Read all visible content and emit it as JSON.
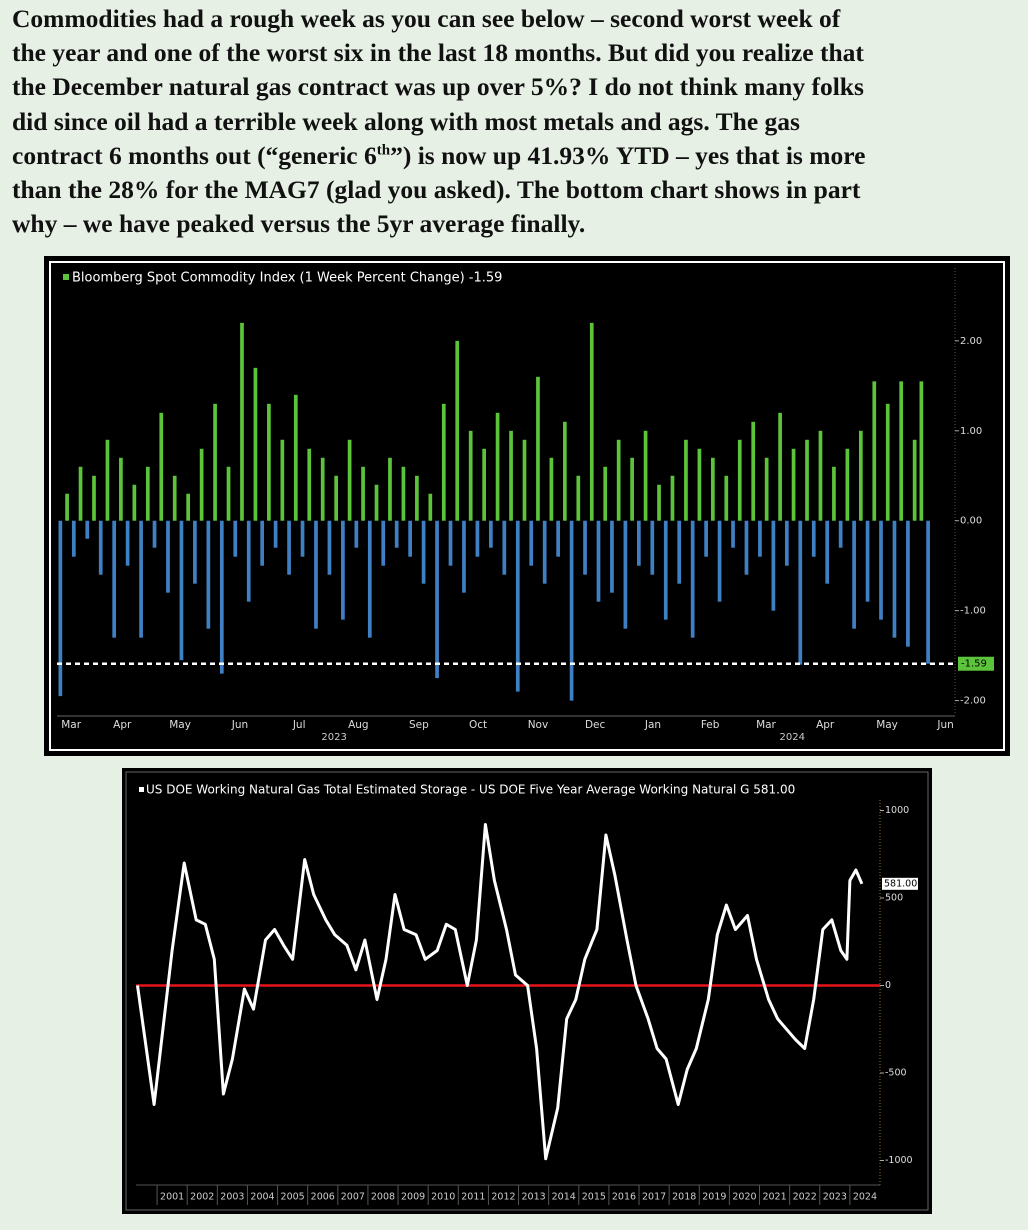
{
  "paragraph": {
    "lines": [
      "Commodities had a rough week as you can see below – second worst week of",
      "the year and one of the worst six in the last 18 months. But did you realize that",
      "the December natural gas contract was up over 5%? I do not think many folks",
      "did since oil had a terrible week along with most metals and ags. The gas",
      [
        "contract 6 months out (“generic 6",
        "th",
        "”)  is now up 41.93% YTD – yes that is more"
      ],
      "than the 28% for the MAG7 (glad you asked). The bottom chart shows in part",
      "why – we have peaked versus the 5yr average finally."
    ]
  },
  "chart_data": [
    {
      "type": "bar",
      "title": "Bloomberg Spot Commodity Index (1 Week Percent Change) -1.59",
      "positive_color": "#5cc43a",
      "negative_color": "#3f80c4",
      "values": [
        -1.95,
        0.3,
        -0.4,
        0.6,
        -0.2,
        0.5,
        -0.6,
        0.9,
        -1.3,
        0.7,
        -0.5,
        0.4,
        -1.3,
        0.6,
        -0.3,
        1.2,
        -0.8,
        0.5,
        -1.55,
        0.3,
        -0.7,
        0.8,
        -1.2,
        1.3,
        -1.7,
        0.6,
        -0.4,
        2.2,
        -0.9,
        1.7,
        -0.5,
        1.3,
        -0.3,
        0.9,
        -0.6,
        1.4,
        -0.4,
        0.8,
        -1.2,
        0.7,
        -0.6,
        0.5,
        -1.1,
        0.9,
        -0.3,
        0.6,
        -1.3,
        0.4,
        -0.5,
        0.7,
        -0.3,
        0.6,
        -0.4,
        0.5,
        -0.7,
        0.3,
        -1.75,
        1.3,
        -0.5,
        2.0,
        -0.8,
        1.0,
        -0.4,
        0.8,
        -0.3,
        1.2,
        -0.6,
        1.0,
        -1.9,
        0.9,
        -0.5,
        1.6,
        -0.7,
        0.7,
        -0.4,
        1.1,
        -2.0,
        0.5,
        -0.6,
        2.2,
        -0.9,
        0.6,
        -0.8,
        0.9,
        -1.2,
        0.7,
        -0.5,
        1.0,
        -0.6,
        0.4,
        -1.1,
        0.5,
        -0.7,
        0.9,
        -1.3,
        0.8,
        -0.4,
        0.7,
        -0.9,
        0.5,
        -0.3,
        0.9,
        -0.6,
        1.1,
        -0.4,
        0.7,
        -1.0,
        1.2,
        -0.5,
        0.8,
        -1.6,
        0.9,
        -0.4,
        1.0,
        -0.7,
        0.6,
        -0.3,
        0.8,
        -1.2,
        1.0,
        -0.9,
        1.55,
        -1.1,
        1.3,
        -1.3,
        1.55,
        -1.4,
        0.9,
        1.55,
        -1.59
      ],
      "xlim": [
        -0.5,
        133
      ],
      "xticks": [
        {
          "value": 1.6,
          "label": "Mar"
        },
        {
          "value": 9.2,
          "label": "Apr"
        },
        {
          "value": 17.8,
          "label": "May"
        },
        {
          "value": 26.7,
          "label": "Jun"
        },
        {
          "value": 35.5,
          "label": "Jul"
        },
        {
          "value": 44.3,
          "label": "Aug"
        },
        {
          "value": 53.3,
          "label": "Sep"
        },
        {
          "value": 62.1,
          "label": "Oct"
        },
        {
          "value": 71,
          "label": "Nov"
        },
        {
          "value": 79.5,
          "label": "Dec"
        },
        {
          "value": 88.1,
          "label": "Jan"
        },
        {
          "value": 96.6,
          "label": "Feb"
        },
        {
          "value": 104.9,
          "label": "Mar"
        },
        {
          "value": 113.7,
          "label": "Apr"
        },
        {
          "value": 122.9,
          "label": "May"
        },
        {
          "value": 131.6,
          "label": "Jun"
        }
      ],
      "year_labels": [
        {
          "value": 40.7,
          "label": "2023"
        },
        {
          "value": 108.8,
          "label": "2024"
        }
      ],
      "ylim": [
        -2.16,
        2.81
      ],
      "yticks": [
        {
          "value": 2,
          "label": "2.00"
        },
        {
          "value": 1,
          "label": "1.00"
        },
        {
          "value": 0,
          "label": "0.00"
        },
        {
          "value": -1,
          "label": "-1.00"
        },
        {
          "value": -2,
          "label": "-2.00"
        }
      ],
      "current_value": -1.59,
      "current_label": "-1.59"
    },
    {
      "type": "line",
      "title": "US DOE Working Natural Gas Total Estimated Storage - US DOE Five Year Average Working Natural G 581.00",
      "color": "#ffffff",
      "x": [
        2000.35,
        2000.9,
        2001.5,
        2001.9,
        2002.3,
        2002.6,
        2002.9,
        2003.2,
        2003.5,
        2003.9,
        2004.2,
        2004.6,
        2004.9,
        2005.2,
        2005.5,
        2005.9,
        2006.2,
        2006.6,
        2006.9,
        2007.3,
        2007.6,
        2007.9,
        2008.3,
        2008.6,
        2008.9,
        2009.2,
        2009.6,
        2009.9,
        2010.3,
        2010.6,
        2010.9,
        2011.3,
        2011.6,
        2011.9,
        2012.2,
        2012.6,
        2012.9,
        2013.3,
        2013.6,
        2013.9,
        2014.3,
        2014.6,
        2014.9,
        2015.2,
        2015.6,
        2015.9,
        2016.2,
        2016.6,
        2016.9,
        2017.3,
        2017.6,
        2017.9,
        2018.3,
        2018.6,
        2018.9,
        2019.3,
        2019.6,
        2019.9,
        2020.2,
        2020.6,
        2020.9,
        2021.3,
        2021.6,
        2021.9,
        2022.2,
        2022.5,
        2022.8,
        2023.1,
        2023.4,
        2023.7,
        2023.9,
        2024.0,
        2024.2,
        2024.4
      ],
      "values": [
        0,
        -680,
        200,
        700,
        375,
        350,
        150,
        -620,
        -420,
        -20,
        -135,
        260,
        320,
        230,
        150,
        720,
        520,
        375,
        290,
        230,
        90,
        260,
        -80,
        150,
        520,
        320,
        290,
        150,
        200,
        350,
        320,
        0,
        260,
        920,
        600,
        320,
        60,
        0,
        -360,
        -990,
        -700,
        -190,
        -80,
        150,
        320,
        860,
        630,
        260,
        0,
        -190,
        -360,
        -420,
        -680,
        -480,
        -360,
        -80,
        290,
        460,
        320,
        400,
        150,
        -80,
        -190,
        -250,
        -310,
        -360,
        -80,
        320,
        375,
        200,
        150,
        600,
        660,
        581
      ],
      "reference_line": 0,
      "reference_color": "#e8141b",
      "xlim": [
        2000.3,
        2025.0
      ],
      "xticks": [
        2001,
        2002,
        2003,
        2004,
        2005,
        2006,
        2007,
        2008,
        2009,
        2010,
        2011,
        2012,
        2013,
        2014,
        2015,
        2016,
        2017,
        2018,
        2019,
        2020,
        2021,
        2022,
        2023,
        2024
      ],
      "ylim": [
        -1140,
        1060
      ],
      "yticks": [
        1000,
        500,
        0,
        -500,
        -1000
      ],
      "current_value": 581,
      "current_label": "581.00"
    }
  ]
}
